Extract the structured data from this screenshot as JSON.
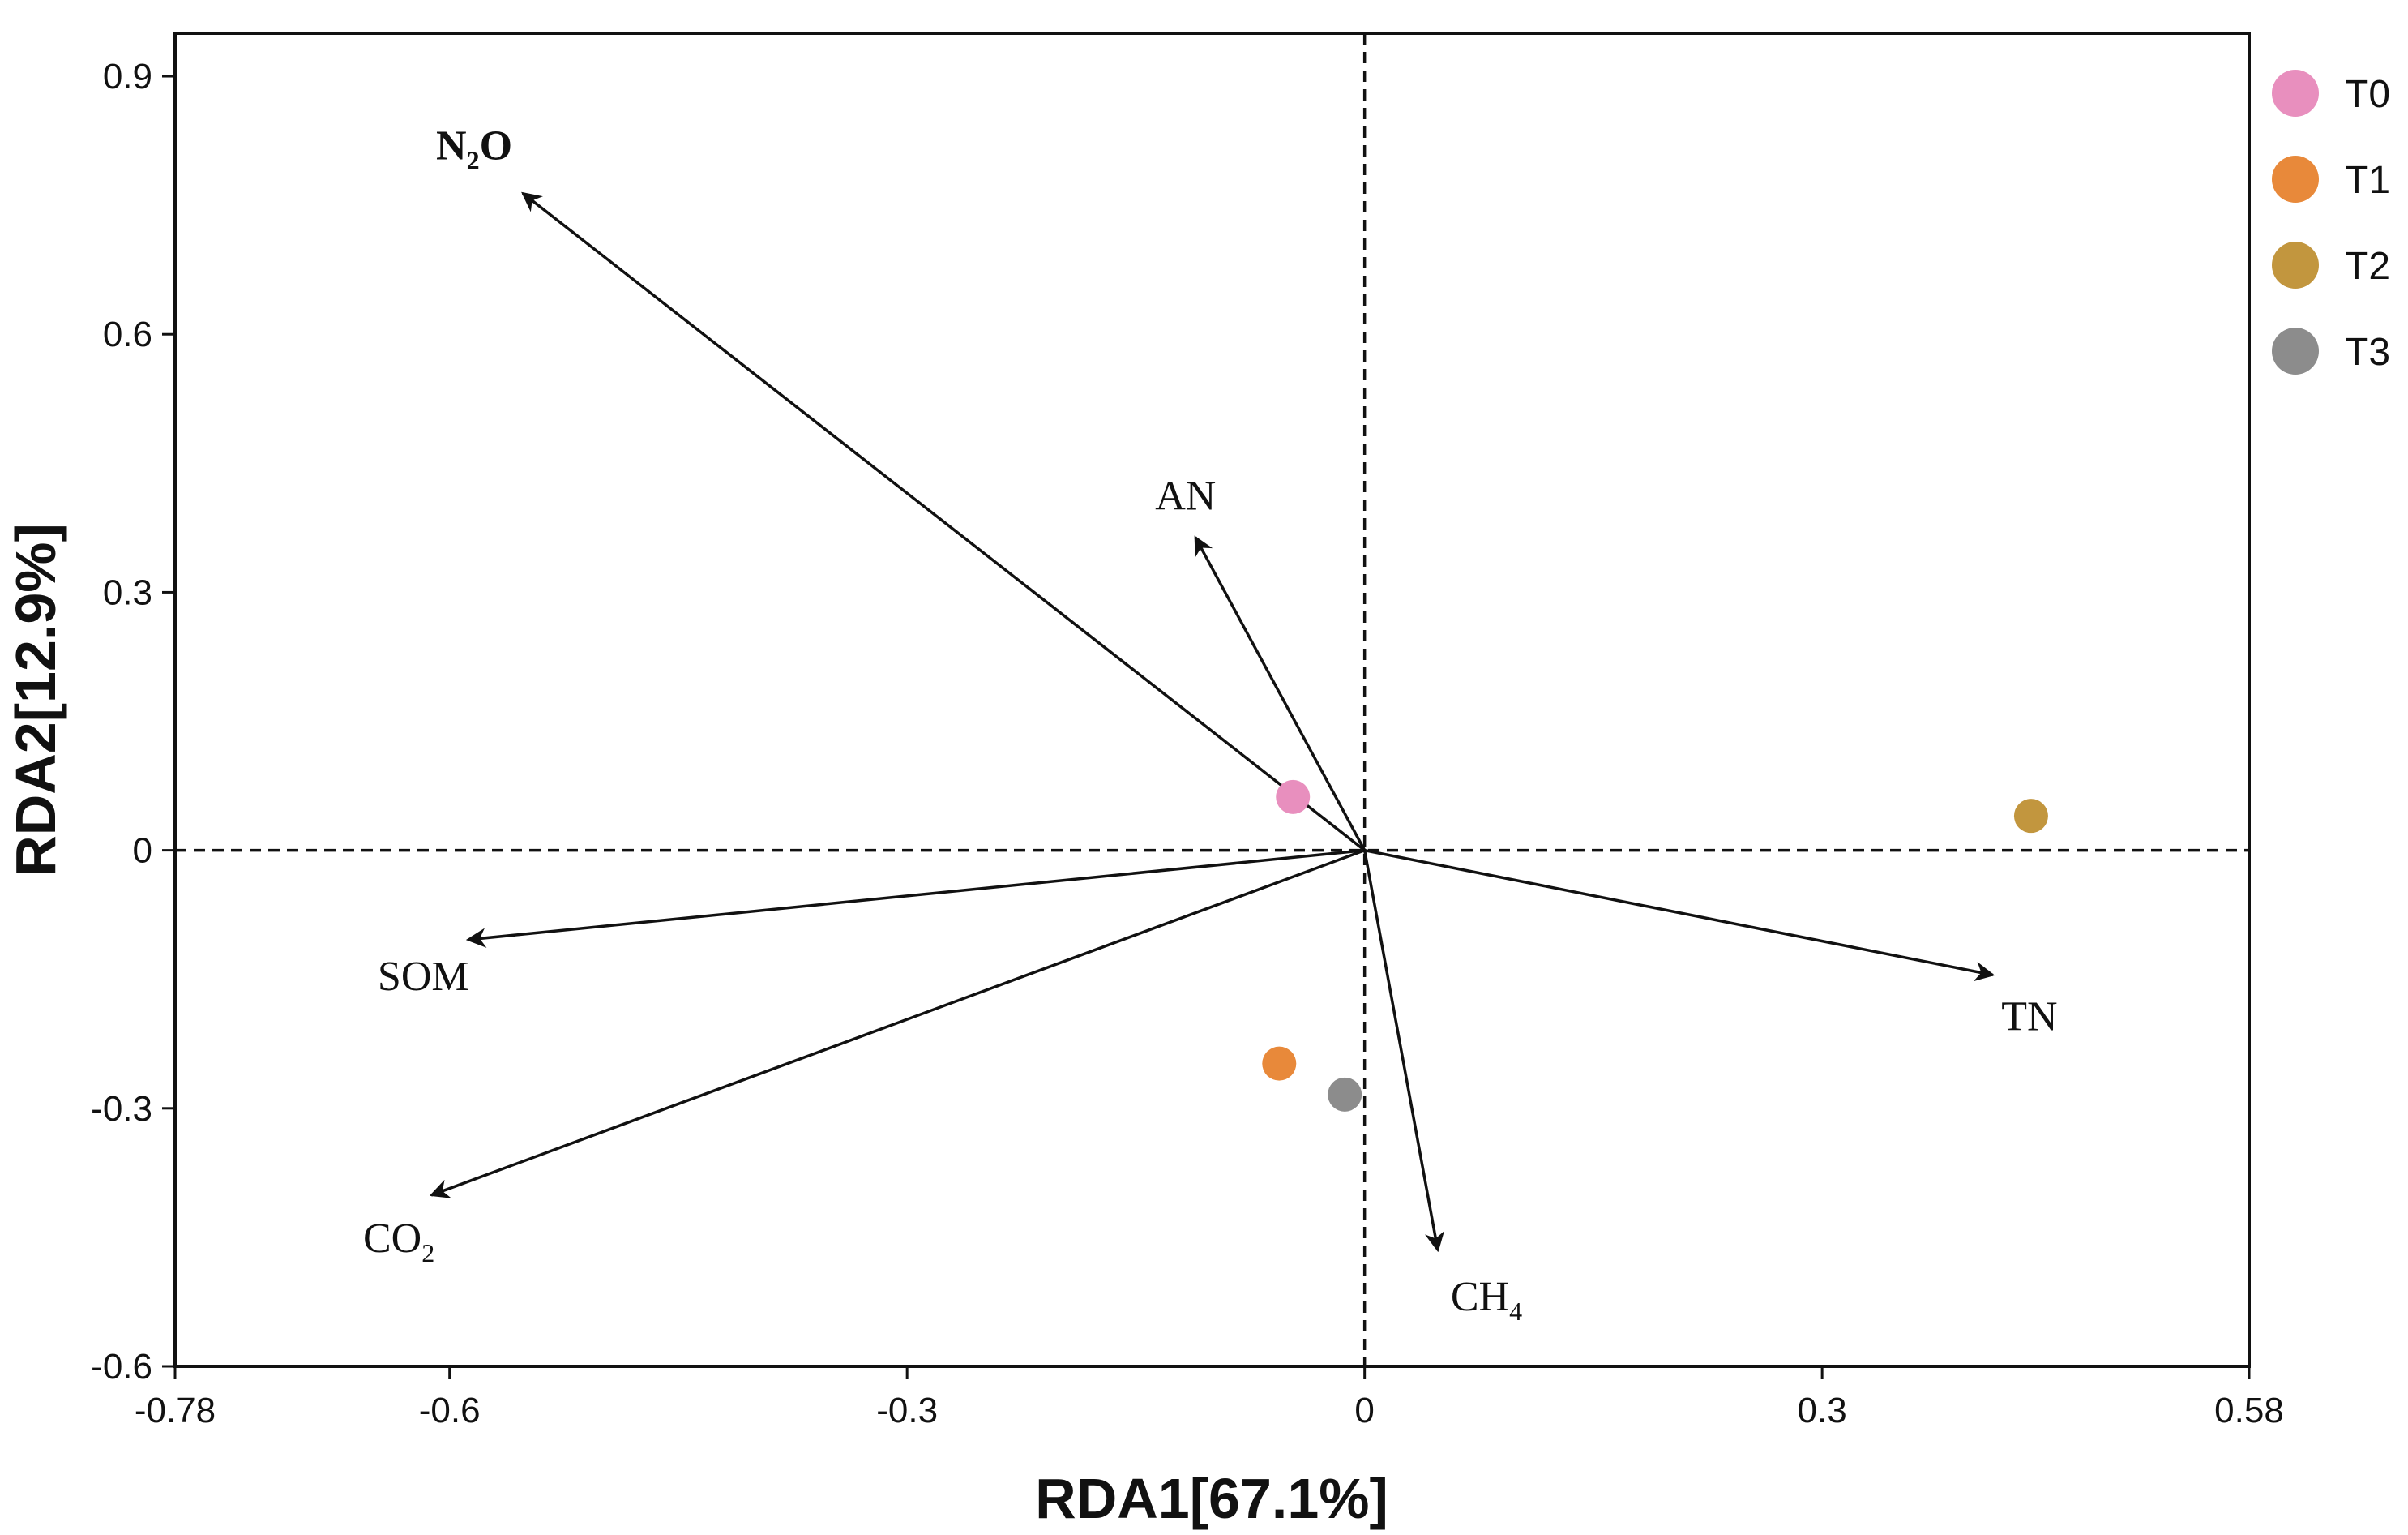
{
  "chart_data": {
    "type": "scatter",
    "title": "",
    "xlabel": "RDA1[67.1%]",
    "ylabel": "RDA2[12.9%]",
    "xlim": [
      -0.78,
      0.58
    ],
    "ylim": [
      -0.6,
      0.95
    ],
    "x_ticks": [
      {
        "value": -0.78,
        "label": "-0.78"
      },
      {
        "value": -0.6,
        "label": "-0.6"
      },
      {
        "value": -0.3,
        "label": "-0.3"
      },
      {
        "value": 0,
        "label": "0"
      },
      {
        "value": 0.3,
        "label": "0.3"
      },
      {
        "value": 0.58,
        "label": "0.58"
      }
    ],
    "y_ticks": [
      {
        "value": 0.9,
        "label": "0.9"
      },
      {
        "value": 0.6,
        "label": "0.6"
      },
      {
        "value": 0.3,
        "label": "0.3"
      },
      {
        "value": 0,
        "label": "0"
      },
      {
        "value": -0.3,
        "label": "-0.3"
      },
      {
        "value": -0.6,
        "label": "-0.6"
      }
    ],
    "grid": false,
    "zero_lines": "dashed",
    "legend_position": "right",
    "series": [
      {
        "name": "T0",
        "color": "#e88fbe",
        "x": -0.047,
        "y": 0.062
      },
      {
        "name": "T1",
        "color": "#e8893a",
        "x": -0.056,
        "y": -0.248
      },
      {
        "name": "T2",
        "color": "#c2963e",
        "x": 0.437,
        "y": 0.04
      },
      {
        "name": "T3",
        "color": "#8c8c8c",
        "x": -0.013,
        "y": -0.284
      }
    ],
    "vectors": [
      {
        "name": "N2O",
        "base": "N",
        "sub": "2",
        "tail": "O",
        "bold": true,
        "x": -0.552,
        "y": 0.764
      },
      {
        "name": "AN",
        "base": "AN",
        "sub": "",
        "tail": "",
        "bold": false,
        "x": -0.111,
        "y": 0.364
      },
      {
        "name": "SOM",
        "base": "SOM",
        "sub": "",
        "tail": "",
        "bold": false,
        "x": -0.588,
        "y": -0.104
      },
      {
        "name": "CO2",
        "base": "CO",
        "sub": "2",
        "tail": "",
        "bold": false,
        "x": -0.612,
        "y": -0.401
      },
      {
        "name": "CH4",
        "base": "CH",
        "sub": "4",
        "tail": "",
        "bold": false,
        "x": 0.048,
        "y": -0.465
      },
      {
        "name": "TN",
        "base": "TN",
        "sub": "",
        "tail": "",
        "bold": false,
        "x": 0.412,
        "y": -0.145
      }
    ]
  }
}
